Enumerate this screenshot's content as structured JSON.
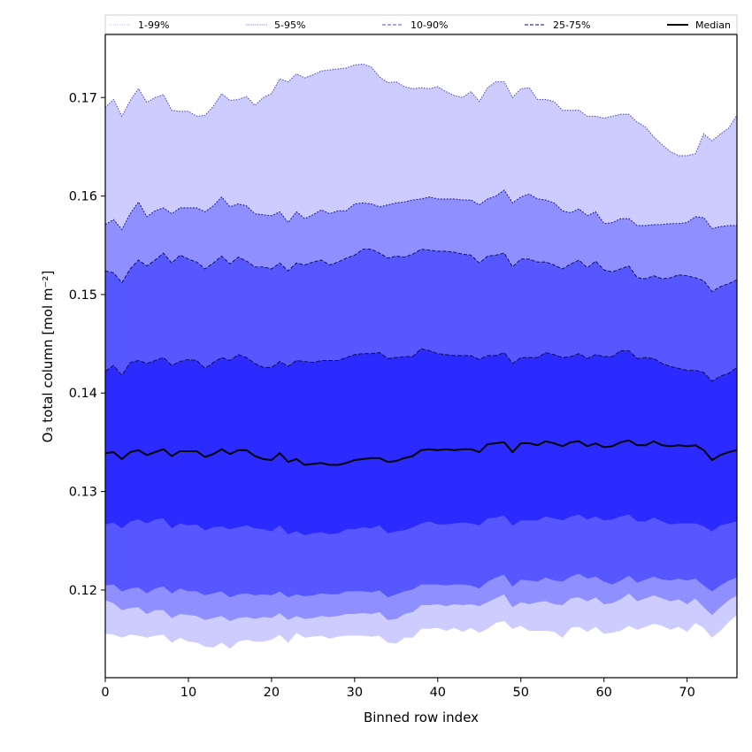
{
  "chart_data": {
    "type": "area",
    "title": "",
    "xlabel": "Binned row index",
    "ylabel": "O₃ total column [mol m⁻²]",
    "xlim": [
      0,
      76
    ],
    "ylim": [
      0.1111,
      0.1764
    ],
    "xticks": [
      0,
      10,
      20,
      30,
      40,
      50,
      60,
      70
    ],
    "xtick_labels": [
      "0",
      "10",
      "20",
      "30",
      "40",
      "50",
      "60",
      "70"
    ],
    "yticks": [
      0.12,
      0.13,
      0.14,
      0.15,
      0.16,
      0.17
    ],
    "ytick_labels": [
      "0.12",
      "0.13",
      "0.14",
      "0.15",
      "0.16",
      "0.17"
    ],
    "grid": false,
    "legend_position": "top (horizontal, above plot)",
    "legend": [
      {
        "label": "1-99%",
        "style": "dotted",
        "color": "#ccccff"
      },
      {
        "label": "5-95%",
        "style": "dotted",
        "color": "#8f8fff"
      },
      {
        "label": "10-90%",
        "style": "dashed",
        "color": "#5757ff"
      },
      {
        "label": "25-75%",
        "style": "dashed",
        "color": "#2b2bff"
      },
      {
        "label": "Median",
        "style": "solid",
        "color": "#000000"
      }
    ],
    "x": [
      0,
      1,
      2,
      3,
      4,
      5,
      6,
      7,
      8,
      9,
      10,
      11,
      12,
      13,
      14,
      15,
      16,
      17,
      18,
      19,
      20,
      21,
      22,
      23,
      24,
      25,
      26,
      27,
      28,
      29,
      30,
      31,
      32,
      33,
      34,
      35,
      36,
      37,
      38,
      39,
      40,
      41,
      42,
      43,
      44,
      45,
      46,
      47,
      48,
      49,
      50,
      51,
      52,
      53,
      54,
      55,
      56,
      57,
      58,
      59,
      60,
      61,
      62,
      63,
      64,
      65,
      66,
      67,
      68,
      69,
      70,
      71,
      72,
      73,
      74,
      75,
      76
    ],
    "series": [
      {
        "name": "p99",
        "values": [
          0.169,
          0.1698,
          0.1681,
          0.1697,
          0.1709,
          0.1695,
          0.17,
          0.1703,
          0.1687,
          0.1686,
          0.1686,
          0.1681,
          0.1682,
          0.1691,
          0.1704,
          0.1697,
          0.1698,
          0.1701,
          0.1692,
          0.17,
          0.1704,
          0.1719,
          0.1716,
          0.1724,
          0.172,
          0.1723,
          0.1727,
          0.1728,
          0.1729,
          0.173,
          0.1733,
          0.1734,
          0.1731,
          0.1721,
          0.1715,
          0.1716,
          0.1711,
          0.1709,
          0.171,
          0.1709,
          0.1711,
          0.1706,
          0.1702,
          0.17,
          0.1706,
          0.1696,
          0.171,
          0.1716,
          0.1716,
          0.17,
          0.1709,
          0.171,
          0.1698,
          0.1698,
          0.1696,
          0.1687,
          0.1687,
          0.1687,
          0.1681,
          0.1681,
          0.1679,
          0.1681,
          0.1683,
          0.1683,
          0.1675,
          0.167,
          0.166,
          0.1652,
          0.1645,
          0.1641,
          0.1641,
          0.1643,
          0.1663,
          0.1656,
          0.1663,
          0.1669,
          0.1682
        ]
      },
      {
        "name": "p95",
        "values": [
          0.1571,
          0.1576,
          0.1566,
          0.1582,
          0.1594,
          0.1579,
          0.1585,
          0.1588,
          0.1582,
          0.1588,
          0.1588,
          0.1588,
          0.1584,
          0.159,
          0.1599,
          0.1589,
          0.1592,
          0.159,
          0.1582,
          0.1581,
          0.158,
          0.1584,
          0.1573,
          0.1584,
          0.1577,
          0.1581,
          0.1586,
          0.1582,
          0.1585,
          0.1585,
          0.1592,
          0.1593,
          0.1592,
          0.1589,
          0.1591,
          0.1593,
          0.1594,
          0.1596,
          0.1597,
          0.1599,
          0.1597,
          0.1597,
          0.1597,
          0.1596,
          0.1596,
          0.1591,
          0.1597,
          0.16,
          0.1606,
          0.1593,
          0.1599,
          0.1602,
          0.1597,
          0.1596,
          0.1593,
          0.1585,
          0.1583,
          0.1587,
          0.158,
          0.1584,
          0.1572,
          0.1573,
          0.1577,
          0.1577,
          0.157,
          0.157,
          0.1571,
          0.1571,
          0.1572,
          0.1572,
          0.1573,
          0.1579,
          0.1578,
          0.1567,
          0.1569,
          0.157,
          0.157
        ]
      },
      {
        "name": "p90",
        "values": [
          0.1524,
          0.1522,
          0.1512,
          0.1526,
          0.1535,
          0.1529,
          0.1535,
          0.1542,
          0.1532,
          0.154,
          0.1536,
          0.1533,
          0.1526,
          0.1532,
          0.1539,
          0.1531,
          0.1538,
          0.1534,
          0.1528,
          0.1528,
          0.1526,
          0.1532,
          0.1524,
          0.1532,
          0.153,
          0.1533,
          0.1535,
          0.153,
          0.1533,
          0.1537,
          0.154,
          0.1546,
          0.1546,
          0.1542,
          0.1537,
          0.1539,
          0.1538,
          0.1541,
          0.1546,
          0.1545,
          0.1544,
          0.1544,
          0.1543,
          0.1541,
          0.154,
          0.1532,
          0.1539,
          0.154,
          0.1542,
          0.1528,
          0.1536,
          0.1536,
          0.1533,
          0.1533,
          0.153,
          0.1526,
          0.1531,
          0.1535,
          0.1527,
          0.1534,
          0.1525,
          0.1523,
          0.1526,
          0.1529,
          0.1517,
          0.1516,
          0.1519,
          0.1516,
          0.1517,
          0.152,
          0.1519,
          0.1517,
          0.1514,
          0.1503,
          0.1508,
          0.1511,
          0.1515
        ]
      },
      {
        "name": "p75",
        "values": [
          0.1422,
          0.1428,
          0.1418,
          0.1431,
          0.1433,
          0.143,
          0.1433,
          0.1436,
          0.1428,
          0.1432,
          0.1434,
          0.1433,
          0.1425,
          0.1431,
          0.1436,
          0.1433,
          0.1439,
          0.1436,
          0.143,
          0.1426,
          0.1426,
          0.1432,
          0.1427,
          0.1433,
          0.1432,
          0.1431,
          0.1433,
          0.1433,
          0.1433,
          0.1436,
          0.1439,
          0.144,
          0.144,
          0.1441,
          0.1435,
          0.1436,
          0.1437,
          0.1437,
          0.1445,
          0.1443,
          0.144,
          0.1439,
          0.1438,
          0.1438,
          0.1438,
          0.1434,
          0.1438,
          0.1438,
          0.1441,
          0.143,
          0.1436,
          0.1436,
          0.1436,
          0.1441,
          0.1439,
          0.1436,
          0.1437,
          0.144,
          0.1435,
          0.1439,
          0.1437,
          0.1437,
          0.1443,
          0.1443,
          0.1435,
          0.1436,
          0.1435,
          0.143,
          0.1427,
          0.1425,
          0.1423,
          0.1423,
          0.1421,
          0.1412,
          0.1417,
          0.142,
          0.1426
        ]
      },
      {
        "name": "median",
        "values": [
          0.1339,
          0.134,
          0.1333,
          0.134,
          0.1342,
          0.1337,
          0.134,
          0.1343,
          0.1336,
          0.1341,
          0.1341,
          0.1341,
          0.1335,
          0.1338,
          0.1343,
          0.1338,
          0.1342,
          0.1342,
          0.1336,
          0.1333,
          0.1332,
          0.1339,
          0.133,
          0.1333,
          0.1327,
          0.1328,
          0.1329,
          0.1327,
          0.1327,
          0.1329,
          0.1332,
          0.1333,
          0.1334,
          0.1334,
          0.133,
          0.1331,
          0.1334,
          0.1336,
          0.1342,
          0.1343,
          0.1342,
          0.1343,
          0.1342,
          0.1343,
          0.1343,
          0.134,
          0.1348,
          0.1349,
          0.135,
          0.134,
          0.1349,
          0.1349,
          0.1347,
          0.1351,
          0.1349,
          0.1346,
          0.135,
          0.1351,
          0.1346,
          0.1349,
          0.1345,
          0.1346,
          0.135,
          0.1352,
          0.1347,
          0.1347,
          0.1351,
          0.1347,
          0.1346,
          0.1347,
          0.1346,
          0.1347,
          0.1342,
          0.1332,
          0.1337,
          0.134,
          0.1342
        ]
      },
      {
        "name": "p25",
        "values": [
          0.1267,
          0.1269,
          0.1263,
          0.127,
          0.1272,
          0.1268,
          0.1272,
          0.1273,
          0.1263,
          0.1268,
          0.1266,
          0.1267,
          0.1261,
          0.1264,
          0.1265,
          0.1262,
          0.1264,
          0.1266,
          0.1263,
          0.1262,
          0.126,
          0.1266,
          0.1257,
          0.126,
          0.1256,
          0.1258,
          0.1259,
          0.1257,
          0.1258,
          0.1262,
          0.1262,
          0.1264,
          0.1263,
          0.1266,
          0.1258,
          0.126,
          0.1261,
          0.1264,
          0.1268,
          0.127,
          0.1267,
          0.1267,
          0.1268,
          0.1269,
          0.1268,
          0.1266,
          0.1273,
          0.1274,
          0.1276,
          0.1266,
          0.1271,
          0.1271,
          0.1271,
          0.1275,
          0.1273,
          0.1271,
          0.1275,
          0.1277,
          0.1272,
          0.1275,
          0.1271,
          0.1272,
          0.1275,
          0.1277,
          0.127,
          0.127,
          0.1274,
          0.127,
          0.1267,
          0.1268,
          0.1268,
          0.1268,
          0.1265,
          0.126,
          0.1266,
          0.1268,
          0.127
        ]
      },
      {
        "name": "p10",
        "values": [
          0.1205,
          0.1206,
          0.1199,
          0.1202,
          0.1203,
          0.1197,
          0.1202,
          0.1204,
          0.1197,
          0.1202,
          0.1199,
          0.1199,
          0.1195,
          0.1197,
          0.1199,
          0.1193,
          0.1196,
          0.1197,
          0.1195,
          0.1196,
          0.1195,
          0.1199,
          0.1193,
          0.1196,
          0.1194,
          0.1195,
          0.1197,
          0.1196,
          0.1196,
          0.1199,
          0.1199,
          0.1199,
          0.1198,
          0.12,
          0.1193,
          0.1196,
          0.1199,
          0.1201,
          0.1206,
          0.1206,
          0.1206,
          0.1205,
          0.1206,
          0.1206,
          0.1205,
          0.1202,
          0.1209,
          0.1213,
          0.1216,
          0.1204,
          0.1211,
          0.121,
          0.1209,
          0.1213,
          0.121,
          0.1209,
          0.1214,
          0.1217,
          0.1212,
          0.1214,
          0.1209,
          0.1206,
          0.121,
          0.1215,
          0.1208,
          0.1211,
          0.1214,
          0.1211,
          0.121,
          0.1212,
          0.121,
          0.1212,
          0.1205,
          0.1199,
          0.1205,
          0.121,
          0.1213
        ]
      },
      {
        "name": "p5",
        "values": [
          0.119,
          0.1187,
          0.118,
          0.1182,
          0.1183,
          0.1176,
          0.118,
          0.118,
          0.1172,
          0.1176,
          0.1175,
          0.1174,
          0.117,
          0.1172,
          0.1174,
          0.1169,
          0.1172,
          0.1173,
          0.1171,
          0.1173,
          0.1172,
          0.1177,
          0.117,
          0.1174,
          0.1171,
          0.1172,
          0.1174,
          0.1173,
          0.1174,
          0.1176,
          0.1176,
          0.1177,
          0.1176,
          0.1178,
          0.117,
          0.1171,
          0.1176,
          0.1178,
          0.1185,
          0.1185,
          0.1186,
          0.1184,
          0.1186,
          0.1185,
          0.1186,
          0.1184,
          0.1188,
          0.1192,
          0.1196,
          0.1183,
          0.1188,
          0.1186,
          0.1188,
          0.1189,
          0.1186,
          0.1185,
          0.1192,
          0.1193,
          0.1189,
          0.1193,
          0.1186,
          0.1187,
          0.1191,
          0.1197,
          0.1189,
          0.1192,
          0.1195,
          0.1192,
          0.1189,
          0.1191,
          0.1186,
          0.1192,
          0.1183,
          0.1175,
          0.1183,
          0.119,
          0.1195
        ]
      },
      {
        "name": "p1",
        "values": [
          0.1156,
          0.1155,
          0.1152,
          0.1155,
          0.1154,
          0.1152,
          0.1154,
          0.1155,
          0.1147,
          0.1152,
          0.1148,
          0.1147,
          0.1143,
          0.1142,
          0.1147,
          0.1141,
          0.1148,
          0.115,
          0.1148,
          0.1148,
          0.115,
          0.1155,
          0.1147,
          0.1157,
          0.1152,
          0.1153,
          0.1154,
          0.1151,
          0.1153,
          0.1154,
          0.1154,
          0.1154,
          0.1153,
          0.1154,
          0.1147,
          0.1146,
          0.1152,
          0.1152,
          0.1161,
          0.1161,
          0.1162,
          0.1159,
          0.1162,
          0.1158,
          0.1162,
          0.1157,
          0.1161,
          0.1167,
          0.1169,
          0.1161,
          0.1164,
          0.1159,
          0.1159,
          0.1159,
          0.1158,
          0.1152,
          0.1162,
          0.1163,
          0.1158,
          0.1163,
          0.1156,
          0.1157,
          0.1159,
          0.1164,
          0.116,
          0.1163,
          0.1166,
          0.1164,
          0.116,
          0.1163,
          0.1158,
          0.1167,
          0.1162,
          0.1152,
          0.1159,
          0.1168,
          0.1175
        ]
      }
    ],
    "bands": [
      {
        "name": "1-99%",
        "lower": "p1",
        "upper": "p99",
        "color": "#ccccff",
        "edge": "#5050d0",
        "dash": "1.5,1.5"
      },
      {
        "name": "5-95%",
        "lower": "p5",
        "upper": "p95",
        "color": "#8f8fff",
        "edge": "#2a2aa8",
        "dash": "2,1.5"
      },
      {
        "name": "10-90%",
        "lower": "p10",
        "upper": "p90",
        "color": "#5757ff",
        "edge": "#1a1a70",
        "dash": "4,2"
      },
      {
        "name": "25-75%",
        "lower": "p25",
        "upper": "p75",
        "color": "#2b2bff",
        "edge": "#14145a",
        "dash": "5,2"
      }
    ],
    "median_color": "#000000"
  }
}
